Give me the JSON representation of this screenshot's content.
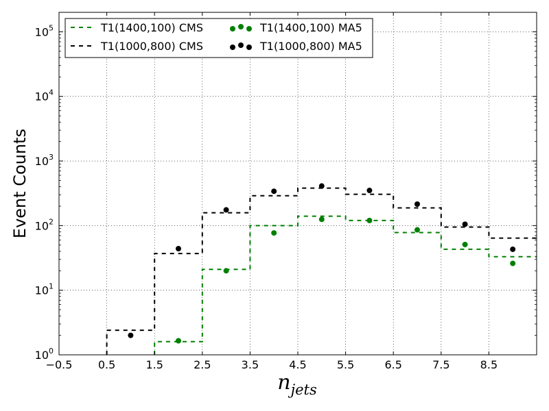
{
  "chart_data": {
    "type": "line",
    "xlabel": "n",
    "xlabel_sub": "jets",
    "ylabel": "Event Counts",
    "x_ticks": [
      "−0.5",
      "0.5",
      "1.5",
      "2.5",
      "3.5",
      "4.5",
      "5.5",
      "6.5",
      "7.5",
      "8.5"
    ],
    "x_tick_values": [
      -0.5,
      0.5,
      1.5,
      2.5,
      3.5,
      4.5,
      5.5,
      6.5,
      7.5,
      8.5
    ],
    "xlim": [
      -0.5,
      9.5
    ],
    "y_scale": "log",
    "ylim": [
      1,
      200000
    ],
    "y_ticks": [
      {
        "base": "10",
        "exp": "0",
        "value": 1
      },
      {
        "base": "10",
        "exp": "1",
        "value": 10
      },
      {
        "base": "10",
        "exp": "2",
        "value": 100
      },
      {
        "base": "10",
        "exp": "3",
        "value": 1000
      },
      {
        "base": "10",
        "exp": "4",
        "value": 10000
      },
      {
        "base": "10",
        "exp": "5",
        "value": 100000
      }
    ],
    "grid": true,
    "legend_position": "top-left",
    "series": [
      {
        "name": "T1(1400,100) CMS",
        "kind": "step-dashed",
        "color": "#008000",
        "bins": [
          {
            "lo": 1.5,
            "hi": 2.5,
            "y": 1.6
          },
          {
            "lo": 2.5,
            "hi": 3.5,
            "y": 21
          },
          {
            "lo": 3.5,
            "hi": 4.5,
            "y": 100
          },
          {
            "lo": 4.5,
            "hi": 5.5,
            "y": 140
          },
          {
            "lo": 5.5,
            "hi": 6.5,
            "y": 120
          },
          {
            "lo": 6.5,
            "hi": 7.5,
            "y": 78
          },
          {
            "lo": 7.5,
            "hi": 8.5,
            "y": 43
          },
          {
            "lo": 8.5,
            "hi": 9.5,
            "y": 33
          }
        ]
      },
      {
        "name": "T1(1000,800) CMS",
        "kind": "step-dashed",
        "color": "#000000",
        "bins": [
          {
            "lo": 0.5,
            "hi": 1.5,
            "y": 2.4
          },
          {
            "lo": 1.5,
            "hi": 2.5,
            "y": 37
          },
          {
            "lo": 2.5,
            "hi": 3.5,
            "y": 158
          },
          {
            "lo": 3.5,
            "hi": 4.5,
            "y": 290
          },
          {
            "lo": 4.5,
            "hi": 5.5,
            "y": 380
          },
          {
            "lo": 5.5,
            "hi": 6.5,
            "y": 305
          },
          {
            "lo": 6.5,
            "hi": 7.5,
            "y": 188
          },
          {
            "lo": 7.5,
            "hi": 8.5,
            "y": 95
          },
          {
            "lo": 8.5,
            "hi": 9.5,
            "y": 64
          }
        ]
      },
      {
        "name": "T1(1400,100) MA5",
        "kind": "scatter",
        "color": "#008000",
        "points": [
          {
            "x": 2,
            "y": 1.65
          },
          {
            "x": 3,
            "y": 20
          },
          {
            "x": 4,
            "y": 77
          },
          {
            "x": 5,
            "y": 125
          },
          {
            "x": 6,
            "y": 120
          },
          {
            "x": 7,
            "y": 86
          },
          {
            "x": 8,
            "y": 51
          },
          {
            "x": 9,
            "y": 26
          }
        ]
      },
      {
        "name": "T1(1000,800) MA5",
        "kind": "scatter",
        "color": "#000000",
        "points": [
          {
            "x": 1,
            "y": 2.0
          },
          {
            "x": 2,
            "y": 44
          },
          {
            "x": 3,
            "y": 175
          },
          {
            "x": 4,
            "y": 340
          },
          {
            "x": 5,
            "y": 410
          },
          {
            "x": 6,
            "y": 350
          },
          {
            "x": 7,
            "y": 215
          },
          {
            "x": 8,
            "y": 105
          },
          {
            "x": 9,
            "y": 43
          }
        ]
      }
    ]
  }
}
